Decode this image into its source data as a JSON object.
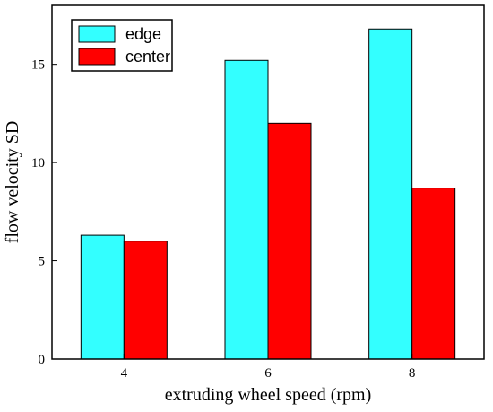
{
  "chart_data": {
    "type": "bar",
    "title": "",
    "xlabel": "extruding wheel speed (rpm)",
    "ylabel": "flow velocity SD",
    "categories": [
      "4",
      "6",
      "8"
    ],
    "ylim": [
      0,
      18
    ],
    "yticks": [
      0,
      5,
      10,
      15
    ],
    "grid": false,
    "legend_position": "top-left",
    "series": [
      {
        "name": "edge",
        "color": "#33ffff",
        "values": [
          6.3,
          15.2,
          16.8
        ]
      },
      {
        "name": "center",
        "color": "#ff0000",
        "values": [
          6.0,
          12.0,
          8.7
        ]
      }
    ]
  }
}
